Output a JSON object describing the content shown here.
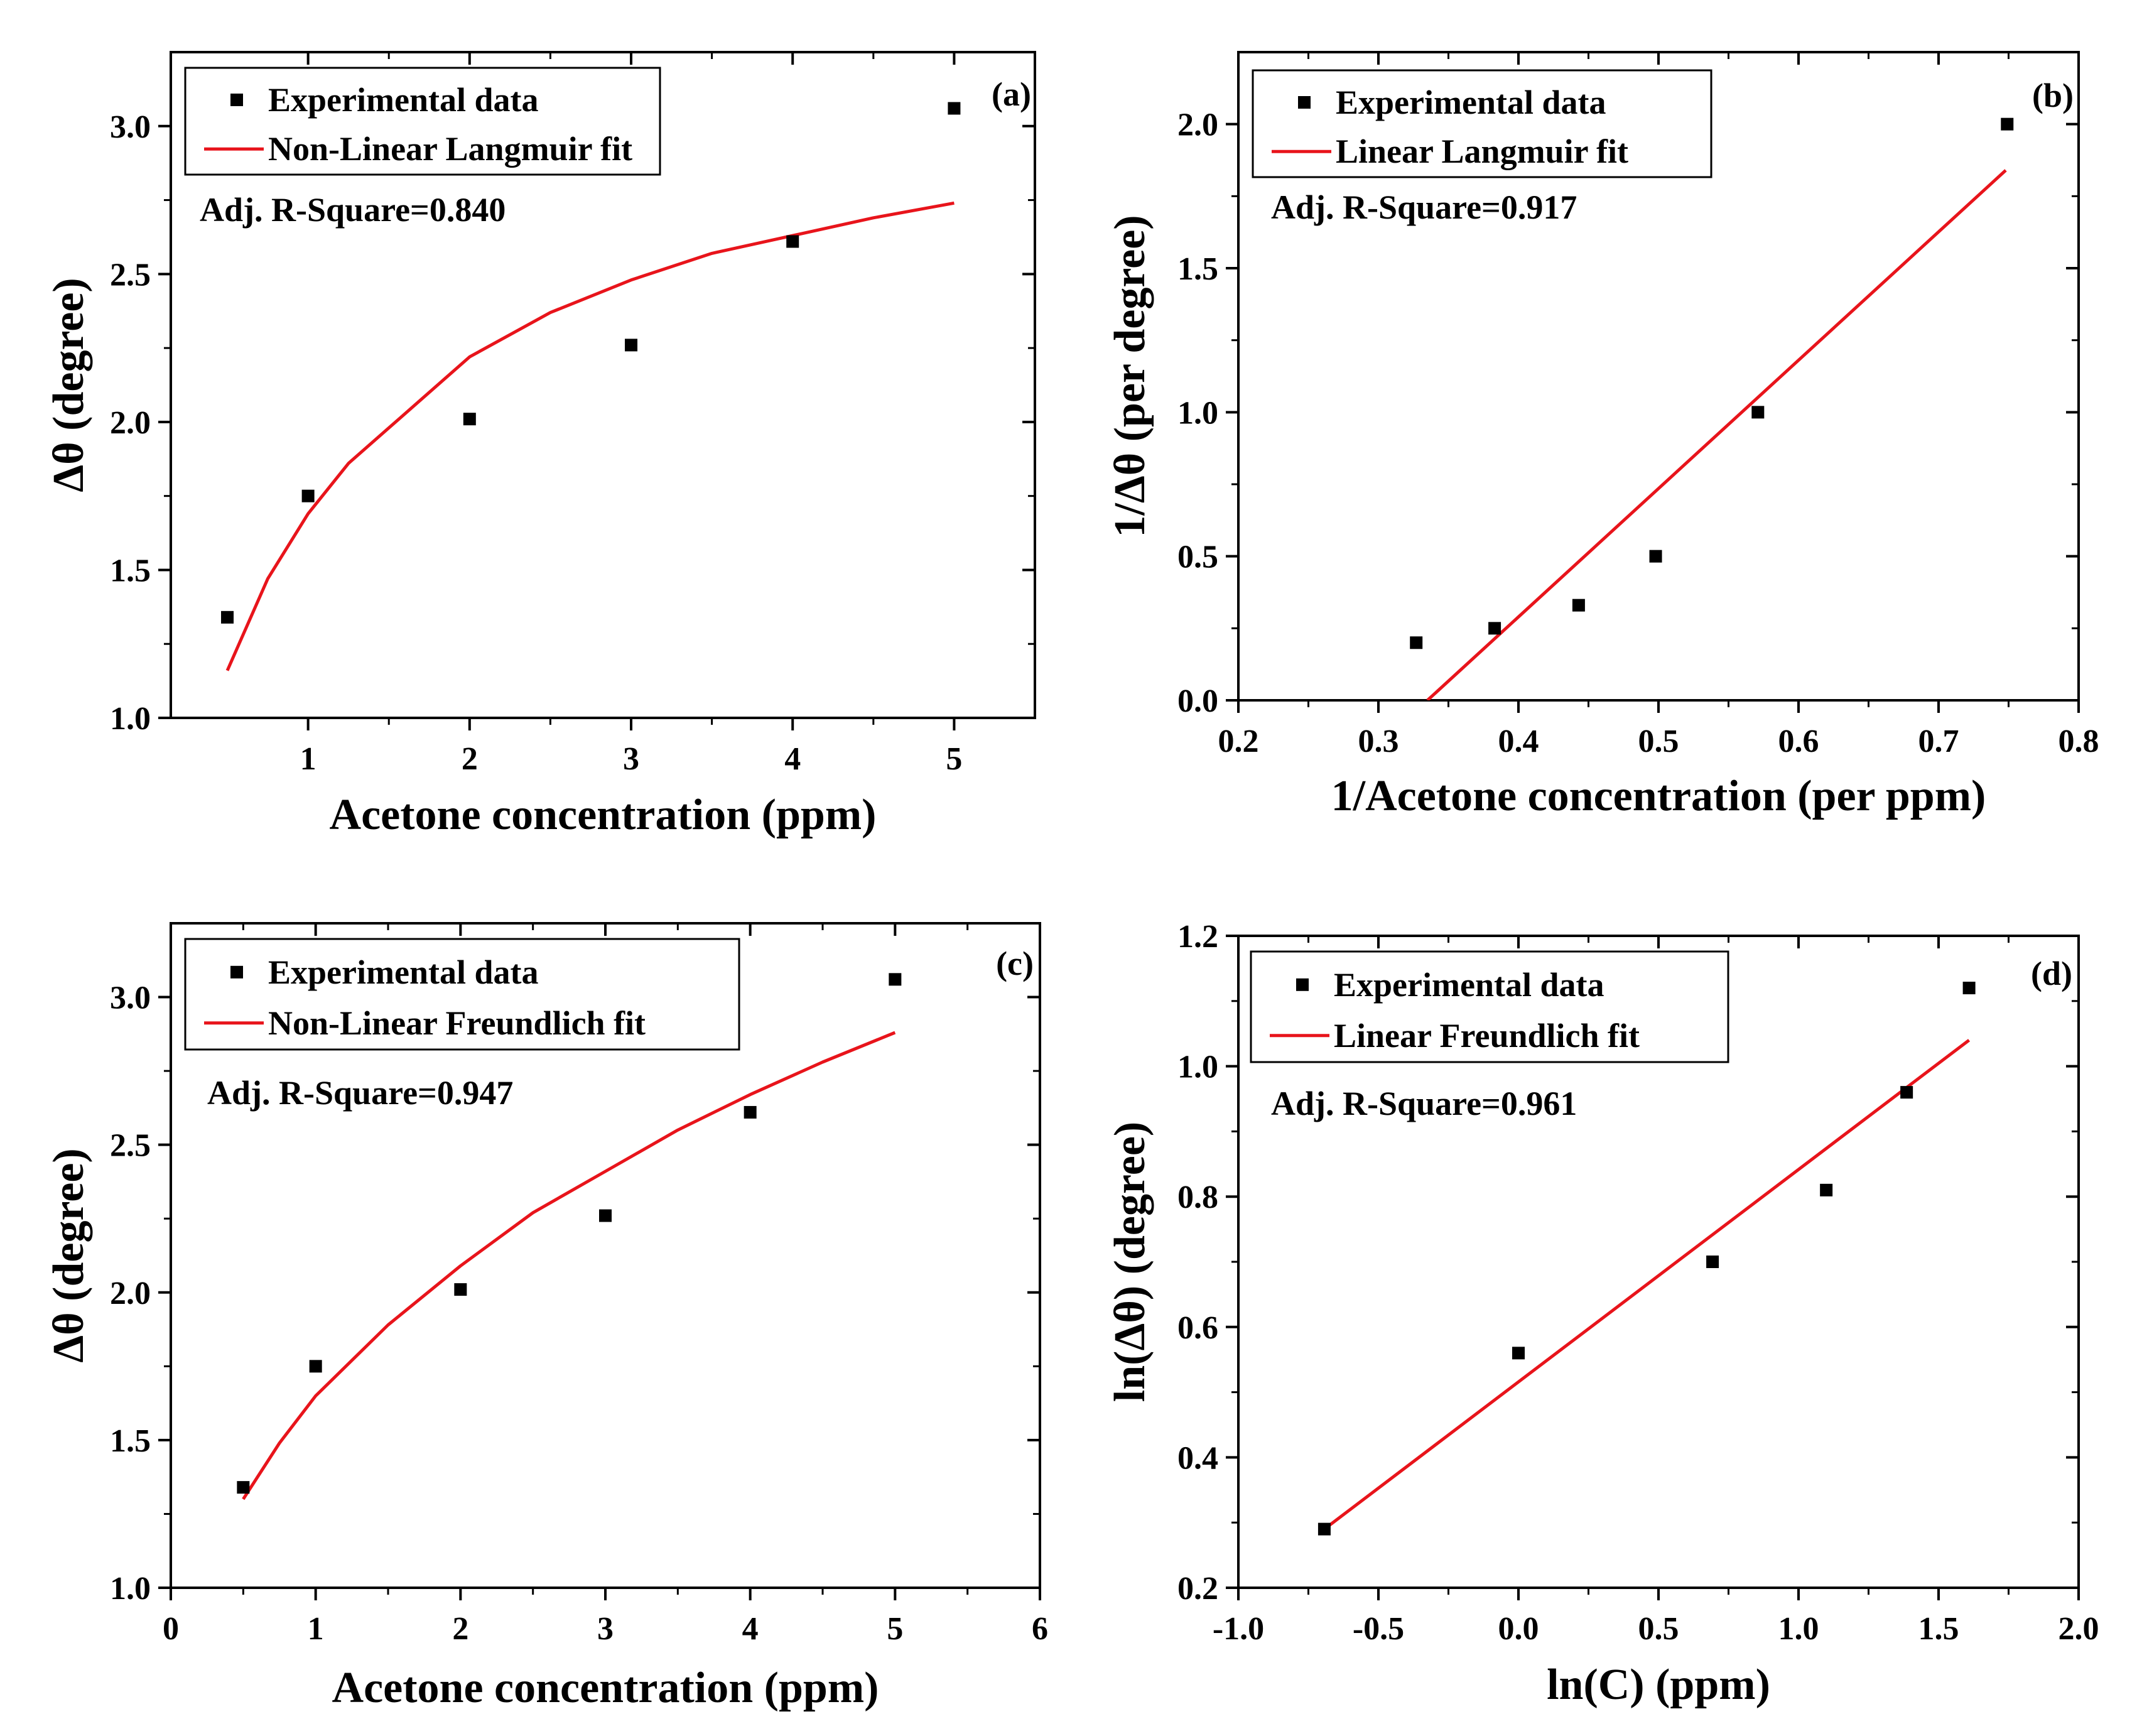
{
  "chart_data": [
    {
      "panel": "(a)",
      "type": "scatter",
      "xlabel": "Acetone concentration (ppm)",
      "ylabel": "Δθ (degree)",
      "xlim": [
        0.15,
        5.5
      ],
      "ylim": [
        1.0,
        3.25
      ],
      "xticks": [
        1,
        2,
        3,
        4,
        5
      ],
      "xtick_labels": [
        "1",
        "2",
        "3",
        "4",
        "5"
      ],
      "yticks": [
        1.0,
        1.5,
        2.0,
        2.5,
        3.0
      ],
      "ytick_labels": [
        "1.0",
        "1.5",
        "2.0",
        "2.5",
        "3.0"
      ],
      "legend": {
        "points": "Experimental data",
        "line": "Non-Linear Langmuir fit",
        "placement": "top-left"
      },
      "annotation": "Adj. R-Square=0.840",
      "series": [
        {
          "name": "Experimental data",
          "kind": "points",
          "x": [
            0.5,
            1,
            2,
            3,
            4,
            5
          ],
          "y": [
            1.34,
            1.75,
            2.01,
            2.26,
            2.61,
            3.06
          ]
        },
        {
          "name": "Non-Linear Langmuir fit",
          "kind": "line",
          "x": [
            0.5,
            0.75,
            1,
            1.25,
            1.5,
            2,
            2.5,
            3,
            3.5,
            4,
            4.5,
            5
          ],
          "y": [
            1.16,
            1.47,
            1.69,
            1.86,
            1.98,
            2.22,
            2.37,
            2.48,
            2.57,
            2.63,
            2.69,
            2.74
          ]
        }
      ]
    },
    {
      "panel": "(b)",
      "type": "scatter",
      "xlabel": "1/Acetone concentration (per ppm)",
      "ylabel": "1/Δθ (per degree)",
      "xlim": [
        0.2,
        0.8
      ],
      "ylim": [
        0.0,
        2.25
      ],
      "xticks": [
        0.2,
        0.3,
        0.4,
        0.5,
        0.6,
        0.7,
        0.8
      ],
      "xtick_labels": [
        "0.2",
        "0.3",
        "0.4",
        "0.5",
        "0.6",
        "0.7",
        "0.8"
      ],
      "yticks": [
        0.0,
        0.5,
        1.0,
        1.5,
        2.0
      ],
      "ytick_labels": [
        "0.0",
        "0.5",
        "1.0",
        "1.5",
        "2.0"
      ],
      "legend": {
        "points": "Experimental data",
        "line": "Linear Langmuir fit",
        "placement": "top-left"
      },
      "annotation": "Adj. R-Square=0.917",
      "series": [
        {
          "name": "Experimental data",
          "kind": "points",
          "x": [
            0.327,
            0.383,
            0.443,
            0.498,
            0.571,
            0.749
          ],
          "y": [
            0.2,
            0.25,
            0.33,
            0.5,
            1.0,
            2.0
          ]
        },
        {
          "name": "Linear Langmuir fit",
          "kind": "line",
          "x": [
            0.335,
            0.748
          ],
          "y": [
            0.0,
            1.84
          ]
        }
      ]
    },
    {
      "panel": "(c)",
      "type": "scatter",
      "xlabel": "Acetone concentration (ppm)",
      "ylabel": "Δθ (degree)",
      "xlim": [
        0,
        6
      ],
      "ylim": [
        1.0,
        3.25
      ],
      "xticks": [
        0,
        1,
        2,
        3,
        4,
        5,
        6
      ],
      "xtick_labels": [
        "0",
        "1",
        "2",
        "3",
        "4",
        "5",
        "6"
      ],
      "yticks": [
        1.0,
        1.5,
        2.0,
        2.5,
        3.0
      ],
      "ytick_labels": [
        "1.0",
        "1.5",
        "2.0",
        "2.5",
        "3.0"
      ],
      "legend": {
        "points": "Experimental data",
        "line": "Non-Linear Freundlich fit",
        "placement": "top-left"
      },
      "annotation": "Adj. R-Square=0.947",
      "series": [
        {
          "name": "Experimental data",
          "kind": "points",
          "x": [
            0.5,
            1,
            2,
            3,
            4,
            5
          ],
          "y": [
            1.34,
            1.75,
            2.01,
            2.26,
            2.61,
            3.06
          ]
        },
        {
          "name": "Non-Linear Freundlich fit",
          "kind": "line",
          "x": [
            0.5,
            0.75,
            1,
            1.5,
            2,
            2.5,
            3,
            3.5,
            4,
            4.5,
            5
          ],
          "y": [
            1.3,
            1.49,
            1.65,
            1.89,
            2.09,
            2.27,
            2.41,
            2.55,
            2.67,
            2.78,
            2.88
          ]
        }
      ]
    },
    {
      "panel": "(d)",
      "type": "scatter",
      "xlabel": "ln(C) (ppm)",
      "ylabel": "ln(Δθ) (degree)",
      "xlim": [
        -1.0,
        2.0
      ],
      "ylim": [
        0.2,
        1.2
      ],
      "xticks": [
        -1.0,
        -0.5,
        0.0,
        0.5,
        1.0,
        1.5,
        2.0
      ],
      "xtick_labels": [
        "-1.0",
        "-0.5",
        "0.0",
        "0.5",
        "1.0",
        "1.5",
        "2.0"
      ],
      "yticks": [
        0.2,
        0.4,
        0.6,
        0.8,
        1.0,
        1.2
      ],
      "ytick_labels": [
        "0.2",
        "0.4",
        "0.6",
        "0.8",
        "1.0",
        "1.2"
      ],
      "legend": {
        "points": "Experimental data",
        "line": "Linear Freundlich fit",
        "placement": "top-left"
      },
      "annotation": "Adj. R-Square=0.961",
      "series": [
        {
          "name": "Experimental data",
          "kind": "points",
          "x": [
            -0.693,
            0.0,
            0.693,
            1.099,
            1.386,
            1.609
          ],
          "y": [
            0.29,
            0.56,
            0.7,
            0.81,
            0.96,
            1.12
          ]
        },
        {
          "name": "Linear Freundlich fit",
          "kind": "line",
          "x": [
            -0.693,
            1.609
          ],
          "y": [
            0.29,
            1.04
          ]
        }
      ]
    }
  ]
}
